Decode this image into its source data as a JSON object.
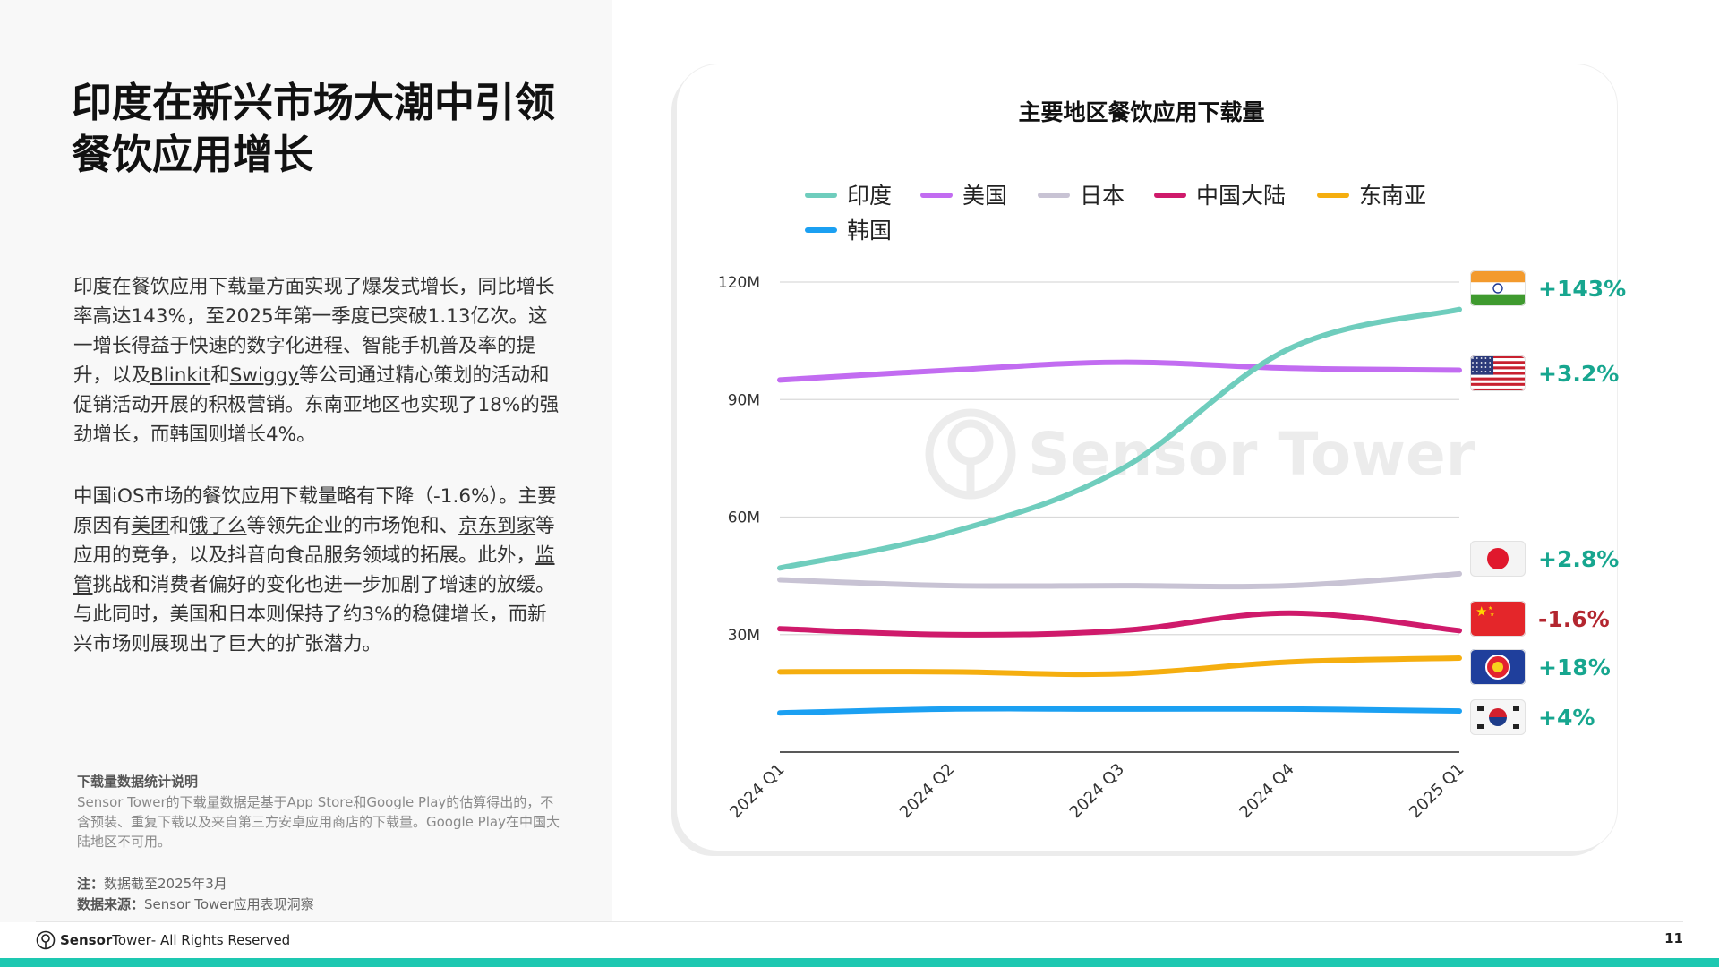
{
  "slide": {
    "title": "印度在新兴市场大潮中引领餐饮应用增长",
    "para1": [
      {
        "text": "印度在餐饮应用下载量方面实现了爆发式增长，同比增长率高达143%，至2025年第一季度已突破1.13亿次。这一增长得益于快速的数字化进程、智能手机普及率的提升，以及"
      },
      {
        "text": "Blinkit",
        "u": true
      },
      {
        "text": "和"
      },
      {
        "text": "Swiggy",
        "u": true
      },
      {
        "text": "等公司通过精心策划的活动和促销活动开展的积极营销。东南亚地区也实现了18%的强劲增长，而韩国则增长4%。"
      }
    ],
    "para2": [
      {
        "text": "中国iOS市场的餐饮应用下载量略有下降（-1.6%）。主要原因有"
      },
      {
        "text": "美团",
        "u": true
      },
      {
        "text": "和"
      },
      {
        "text": "饿了么",
        "u": true
      },
      {
        "text": "等领先企业的市场饱和、"
      },
      {
        "text": "京东到家",
        "u": true
      },
      {
        "text": "等应用的竞争，以及抖音向食品服务领域的拓展。此外，"
      },
      {
        "text": "监管",
        "u": true
      },
      {
        "text": "挑战和消费者偏好的变化也进一步加剧了增速的放缓。与此同时，美国和日本则保持了约3%的稳健增长，而新兴市场则展现出了巨大的扩张潜力。"
      }
    ],
    "note_title": "下载量数据统计说明",
    "note_body": "Sensor Tower的下载量数据是基于App Store和Google Play的估算得出的，不含预装、重复下载以及来自第三方安卓应用商店的下载量。Google Play在中国大陆地区不可用。",
    "note_label": "注：",
    "note_value": "数据截至2025年3月",
    "source_label": "数据来源：",
    "source_value": "Sensor Tower应用表现洞察",
    "footer_brand_a": "Sensor",
    "footer_brand_b": "Tower",
    "footer_rights": " - All Rights Reserved",
    "page_number": "11",
    "watermark": "Sensor Tower"
  },
  "colors": {
    "accent_bar": "#1ec8b1",
    "growth_positive": "#17a68f",
    "growth_negative": "#b3262f"
  },
  "chart_data": {
    "type": "line",
    "title": "主要地区餐饮应用下载量",
    "x": [
      "2024 Q1",
      "2024 Q2",
      "2024 Q3",
      "2024 Q4",
      "2025 Q1"
    ],
    "y_ticks": [
      "120M",
      "90M",
      "60M",
      "30M"
    ],
    "y_tick_values": [
      120,
      90,
      60,
      30
    ],
    "ylim": [
      0,
      120
    ],
    "y_unit": "M",
    "grid": true,
    "legend_position": "top",
    "series": [
      {
        "name": "印度",
        "color": "#6fcdbd",
        "values": [
          47,
          56,
          72,
          103,
          113
        ],
        "growth": "+143%",
        "flag": "india-flag-icon"
      },
      {
        "name": "美国",
        "color": "#c26cf1",
        "values": [
          95,
          97.5,
          99.5,
          98,
          97.5
        ],
        "growth": "+3.2%",
        "flag": "usa-flag-icon"
      },
      {
        "name": "日本",
        "color": "#c8c3d4",
        "values": [
          44,
          42.5,
          42.5,
          42.5,
          45.5
        ],
        "growth": "+2.8%",
        "flag": "japan-flag-icon"
      },
      {
        "name": "中国大陆",
        "color": "#cf1a6b",
        "values": [
          31.5,
          30,
          31,
          35.5,
          31
        ],
        "growth": "-1.6%",
        "flag": "china-flag-icon"
      },
      {
        "name": "东南亚",
        "color": "#f5ae0f",
        "values": [
          20.5,
          20.5,
          20,
          23,
          24
        ],
        "growth": "+18%",
        "flag": "asean-flag-icon"
      },
      {
        "name": "韩国",
        "color": "#1ba0f2",
        "values": [
          10,
          11,
          11,
          11,
          10.5
        ],
        "growth": "+4%",
        "flag": "korea-flag-icon"
      }
    ]
  }
}
